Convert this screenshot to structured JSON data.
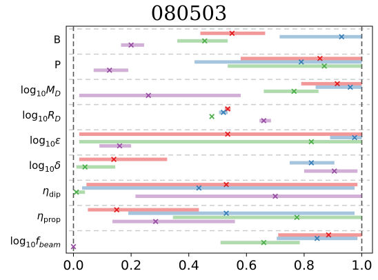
{
  "chart_data": {
    "type": "interval",
    "title": "080503",
    "xlabel": "",
    "ylabel": "",
    "xlim": [
      -0.01,
      1.02
    ],
    "xticks": [
      0.0,
      0.2,
      0.4,
      0.6,
      0.8,
      1.0
    ],
    "xtick_labels": [
      "0.0",
      "0.2",
      "0.4",
      "0.6",
      "0.8",
      "1.0"
    ],
    "reference_lines": [
      0.0,
      1.0
    ],
    "grid": "dashed horizontal separators between categories",
    "series_colors": {
      "red": "#e41a1c",
      "blue": "#377eb8",
      "green": "#4daf4a",
      "purple": "#984ea3"
    },
    "categories": [
      {
        "label": "B",
        "label_parts": {
          "base": "B"
        },
        "entries": [
          {
            "color": "red",
            "lo": 0.44,
            "hi": 0.665,
            "best": 0.55
          },
          {
            "color": "blue",
            "lo": 0.715,
            "hi": 1.0,
            "best": 0.93
          },
          {
            "color": "green",
            "lo": 0.36,
            "hi": 0.535,
            "best": 0.455
          },
          {
            "color": "purple",
            "lo": 0.165,
            "hi": 0.245,
            "best": 0.2
          }
        ]
      },
      {
        "label": "P",
        "label_parts": {
          "base": "P"
        },
        "entries": [
          {
            "color": "red",
            "lo": 0.58,
            "hi": 1.0,
            "best": 0.855
          },
          {
            "color": "blue",
            "lo": 0.42,
            "hi": 1.0,
            "best": 0.79
          },
          {
            "color": "green",
            "lo": 0.535,
            "hi": 1.0,
            "best": 0.87
          },
          {
            "color": "purple",
            "lo": 0.07,
            "hi": 0.19,
            "best": 0.125
          }
        ]
      },
      {
        "label": "log10 M_D",
        "label_parts": {
          "base": "log",
          "sub": "10",
          "italic": "M",
          "italic_sub": "D"
        },
        "entries": [
          {
            "color": "red",
            "lo": 0.79,
            "hi": 1.0,
            "best": 0.915
          },
          {
            "color": "blue",
            "lo": 0.84,
            "hi": 1.0,
            "best": 0.96
          },
          {
            "color": "green",
            "lo": 0.66,
            "hi": 0.85,
            "best": 0.765
          },
          {
            "color": "purple",
            "lo": 0.02,
            "hi": 0.58,
            "best": 0.26
          }
        ]
      },
      {
        "label": "log10 R_D",
        "label_parts": {
          "base": "log",
          "sub": "10",
          "italic": "R",
          "italic_sub": "D"
        },
        "entries": [
          {
            "color": "red",
            "lo": 0.525,
            "hi": 0.545,
            "best": 0.535
          },
          {
            "color": "blue",
            "lo": 0.505,
            "hi": 0.535,
            "best": 0.52
          },
          {
            "color": "green",
            "lo": 0.48,
            "hi": 0.48,
            "best": 0.48
          },
          {
            "color": "purple",
            "lo": 0.645,
            "hi": 0.685,
            "best": 0.66
          }
        ]
      },
      {
        "label": "log10 ε",
        "label_parts": {
          "base": "log",
          "sub": "10",
          "italic": "ε"
        },
        "entries": [
          {
            "color": "red",
            "lo": 0.02,
            "hi": 1.0,
            "best": 0.535
          },
          {
            "color": "blue",
            "lo": 0.89,
            "hi": 1.0,
            "best": 0.975
          },
          {
            "color": "green",
            "lo": 0.02,
            "hi": 1.0,
            "best": 0.825
          },
          {
            "color": "purple",
            "lo": 0.09,
            "hi": 0.2,
            "best": 0.16
          }
        ]
      },
      {
        "label": "log10 δ",
        "label_parts": {
          "base": "log",
          "sub": "10",
          "italic": "δ"
        },
        "entries": [
          {
            "color": "red",
            "lo": 0.02,
            "hi": 0.325,
            "best": 0.14
          },
          {
            "color": "blue",
            "lo": 0.75,
            "hi": 0.905,
            "best": 0.825
          },
          {
            "color": "green",
            "lo": 0.01,
            "hi": 0.145,
            "best": 0.04
          },
          {
            "color": "purple",
            "lo": 0.8,
            "hi": 0.985,
            "best": 0.905
          }
        ]
      },
      {
        "label": "η_dip",
        "label_parts": {
          "italic": "η",
          "sub": "dip"
        },
        "entries": [
          {
            "color": "red",
            "lo": 0.045,
            "hi": 0.985,
            "best": 0.53
          },
          {
            "color": "blue",
            "lo": 0.03,
            "hi": 0.975,
            "best": 0.435
          },
          {
            "color": "green",
            "lo": 0.01,
            "hi": 0.04,
            "best": 0.01
          },
          {
            "color": "purple",
            "lo": 0.215,
            "hi": 1.0,
            "best": 0.7
          }
        ]
      },
      {
        "label": "η_prop",
        "label_parts": {
          "italic": "η",
          "sub": "prop"
        },
        "entries": [
          {
            "color": "red",
            "lo": 0.05,
            "hi": 0.435,
            "best": 0.15
          },
          {
            "color": "blue",
            "lo": 0.19,
            "hi": 0.975,
            "best": 0.53
          },
          {
            "color": "green",
            "lo": 0.345,
            "hi": 1.0,
            "best": 0.775
          },
          {
            "color": "purple",
            "lo": 0.135,
            "hi": 0.56,
            "best": 0.285
          }
        ]
      },
      {
        "label": "log10 f_beam",
        "label_parts": {
          "base": "log",
          "sub": "10",
          "italic": "f",
          "italic_sub": "beam"
        },
        "entries": [
          {
            "color": "red",
            "lo": 0.71,
            "hi": 1.0,
            "best": 0.885
          },
          {
            "color": "blue",
            "lo": 0.705,
            "hi": 0.985,
            "best": 0.845
          },
          {
            "color": "green",
            "lo": 0.51,
            "hi": 0.785,
            "best": 0.66
          },
          {
            "color": "purple",
            "lo": 0.0,
            "hi": 0.0,
            "best": 0.0
          }
        ]
      }
    ]
  }
}
